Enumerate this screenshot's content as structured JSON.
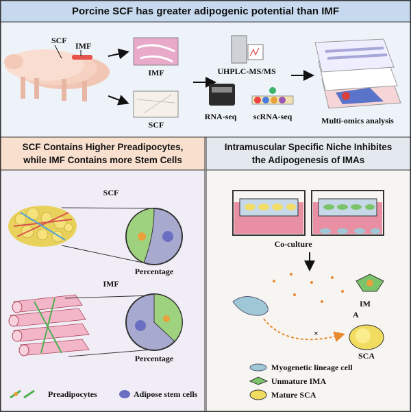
{
  "header": {
    "title": "Porcine SCF has greater adipogenic potential than IMF"
  },
  "workflow": {
    "pig_labels": [
      "SCF",
      "IMF"
    ],
    "tissues": [
      "IMF",
      "SCF"
    ],
    "methods": [
      "UHPLC-MS/MS",
      "RNA-seq",
      "scRNA-seq"
    ],
    "result": "Multi-omics analysis"
  },
  "left_panel": {
    "title_lines": [
      "SCF Contains Higher Preadipocytes,",
      "while IMF Contains more Stem Cells"
    ],
    "groups": [
      {
        "label": "SCF",
        "caption": "Percentage"
      },
      {
        "label": "IMF",
        "caption": "Percentage"
      }
    ],
    "legend": [
      "Preadipocytes",
      "Adipose stem cells"
    ]
  },
  "right_panel": {
    "title_lines": [
      "Intramuscular Specific Niche Inhibites",
      "the Adipogenesis of IMAs"
    ],
    "step": "Co-culture",
    "ima_label_lines": [
      "IM",
      "A"
    ],
    "sca_label": "SCA",
    "block_mark": "×",
    "legend": [
      "Myogenetic lineage cell",
      "Unmature IMA",
      "Mature SCA"
    ]
  }
}
